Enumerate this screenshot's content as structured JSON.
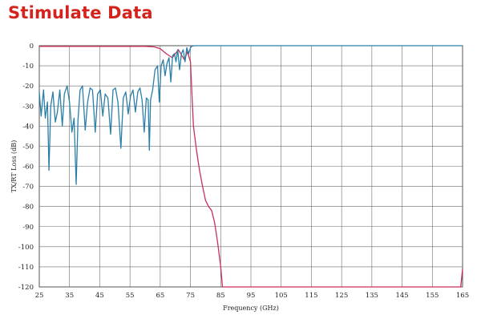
{
  "slide": {
    "title": "Stimulate Data"
  },
  "chart_data": {
    "type": "line",
    "title": "",
    "xlabel": "Frequency (GHz)",
    "ylabel": "TX/RT Loss (dB)",
    "xlim": [
      25,
      165
    ],
    "ylim": [
      -120,
      0
    ],
    "grid": true,
    "x_ticks": [
      25,
      35,
      45,
      55,
      65,
      75,
      85,
      95,
      105,
      115,
      125,
      135,
      145,
      155,
      165
    ],
    "y_ticks": [
      0,
      -10,
      -20,
      -30,
      -40,
      -50,
      -60,
      -70,
      -80,
      -90,
      -100,
      -110,
      -120
    ],
    "colors": {
      "transmission": "#c8305a",
      "return": "#2a7fa8"
    },
    "series": [
      {
        "key": "transmission",
        "x": [
          25,
          40,
          55,
          60,
          63,
          65,
          67,
          69,
          71,
          73,
          74,
          75,
          75.5,
          76,
          77,
          78,
          79,
          80,
          81,
          82,
          83,
          84,
          85,
          85.6,
          87,
          100,
          140,
          164.4,
          165
        ],
        "y": [
          -0.3,
          -0.3,
          -0.3,
          -0.3,
          -0.6,
          -1.5,
          -4,
          -6,
          -2,
          -7,
          -3,
          -8,
          -25,
          -40,
          -52,
          -62,
          -70,
          -77,
          -80,
          -82,
          -88,
          -98,
          -110,
          -120,
          -120,
          -120,
          -120,
          -120,
          -111
        ]
      },
      {
        "key": "return",
        "x": [
          25,
          25.6,
          26.4,
          27,
          27.7,
          28.2,
          28.8,
          29.5,
          30.3,
          31,
          31.8,
          32.6,
          33.3,
          34.2,
          35,
          35.8,
          36.5,
          37.2,
          37.8,
          38.5,
          39.3,
          40.2,
          41,
          41.8,
          42.6,
          43.5,
          44.3,
          45.2,
          46,
          46.8,
          47.7,
          48.6,
          49.4,
          50.2,
          51,
          52,
          52.8,
          53.6,
          54.4,
          55.2,
          56,
          56.8,
          57.6,
          58.3,
          59,
          59.7,
          60.4,
          61,
          61.4,
          61.8,
          62.5,
          63.3,
          64.1,
          64.7,
          65.3,
          66,
          66.6,
          67.2,
          67.9,
          68.5,
          69.1,
          69.7,
          70.2,
          70.8,
          71.4,
          72,
          72.6,
          73.2,
          73.8,
          74.4,
          75,
          75.5,
          76.5,
          80,
          100,
          140,
          165
        ],
        "y": [
          -23,
          -35,
          -22,
          -36,
          -28,
          -62,
          -30,
          -23,
          -38,
          -33,
          -22,
          -40,
          -24,
          -20,
          -28,
          -43,
          -36,
          -69,
          -37,
          -22,
          -20,
          -42,
          -28,
          -21,
          -22,
          -43,
          -24,
          -22,
          -35,
          -24,
          -26,
          -44,
          -22,
          -21,
          -28,
          -51,
          -26,
          -23,
          -34,
          -25,
          -22,
          -33,
          -23,
          -21,
          -27,
          -43,
          -26,
          -27,
          -52,
          -27,
          -22,
          -12,
          -10,
          -28,
          -10,
          -7,
          -15,
          -9,
          -6,
          -18,
          -5,
          -4,
          -8,
          -2,
          -12,
          -4,
          -2,
          -8,
          -1,
          -4,
          -1,
          -0.2,
          0,
          0,
          0,
          0,
          0
        ]
      }
    ]
  }
}
